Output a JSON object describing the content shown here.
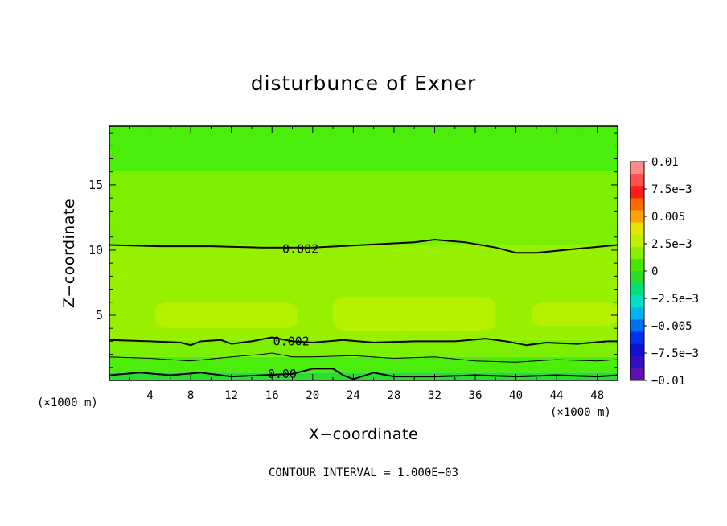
{
  "chart_data": {
    "type": "heatmap",
    "title": "disturbunce of Exner",
    "xlabel": "X−coordinate",
    "ylabel": "Z−coordinate",
    "x_unit": "(×1000 m)",
    "x_unit_right": "(×1000 m)",
    "xlim": [
      0,
      50
    ],
    "ylim": [
      0,
      19.5
    ],
    "x_ticks": [
      4,
      8,
      12,
      16,
      20,
      24,
      28,
      32,
      36,
      40,
      44,
      48
    ],
    "y_ticks": [
      5,
      10,
      15
    ],
    "footer": "CONTOUR INTERVAL = 1.000E−03",
    "colorbar": {
      "range": [
        -0.01,
        0.01
      ],
      "tick_labels": [
        "0.01",
        "7.5e−3",
        "0.005",
        "2.5e−3",
        "0",
        "−2.5e−3",
        "−0.005",
        "−7.5e−3",
        "−0.01"
      ],
      "tick_values": [
        0.01,
        0.0075,
        0.005,
        0.0025,
        0,
        -0.0025,
        -0.005,
        -0.0075,
        -0.01
      ],
      "colors": [
        "#ff8a8a",
        "#ff5050",
        "#ff1c1c",
        "#ff6a00",
        "#ffa400",
        "#e6e600",
        "#c0f000",
        "#86f000",
        "#4ae600",
        "#2edc2e",
        "#00e07a",
        "#00e0c8",
        "#00b4f0",
        "#0070f0",
        "#0030f0",
        "#1010d0",
        "#3010c0",
        "#6010b0"
      ]
    },
    "contour_labels": [
      {
        "text": "0.002",
        "x": 18.8,
        "z": 10.1
      },
      {
        "text": "0.002",
        "x": 17.9,
        "z": 3.0
      },
      {
        "text": "0.00",
        "x": 17.0,
        "z": 0.5
      }
    ],
    "bands": [
      {
        "color": "#4bee0a",
        "z_from": 16.0,
        "z_to": 19.5
      },
      {
        "color": "#7af000",
        "z_from": 10.4,
        "z_to": 16.0
      },
      {
        "color": "#96f000",
        "z_from": 3.1,
        "z_to": 10.4
      },
      {
        "color": "#7af000",
        "z_from": 1.8,
        "z_to": 3.1
      },
      {
        "color": "#4bee0a",
        "z_from": 0.6,
        "z_to": 1.8
      },
      {
        "color": "#2cde2c",
        "z_from": 0,
        "z_to": 0.6
      }
    ],
    "patches": [
      {
        "color": "#b4f000",
        "x": [
          4.5,
          18.5
        ],
        "z": [
          4.0,
          6.0
        ]
      },
      {
        "color": "#b4f000",
        "x": [
          22,
          38
        ],
        "z": [
          3.8,
          6.4
        ]
      },
      {
        "color": "#b4f000",
        "x": [
          41.5,
          50
        ],
        "z": [
          4.2,
          6.0
        ]
      }
    ],
    "contours": [
      {
        "level": "0.002",
        "width": 2,
        "points": [
          [
            0,
            10.4
          ],
          [
            5,
            10.3
          ],
          [
            10,
            10.3
          ],
          [
            15,
            10.2
          ],
          [
            20,
            10.2
          ],
          [
            25,
            10.4
          ],
          [
            30,
            10.6
          ],
          [
            32,
            10.8
          ],
          [
            35,
            10.6
          ],
          [
            38,
            10.2
          ],
          [
            40,
            9.8
          ],
          [
            42,
            9.8
          ],
          [
            46,
            10.1
          ],
          [
            50,
            10.4
          ]
        ]
      },
      {
        "level": "0.002",
        "width": 2,
        "points": [
          [
            0,
            3.1
          ],
          [
            4,
            3.0
          ],
          [
            7,
            2.9
          ],
          [
            8,
            2.7
          ],
          [
            9,
            3.0
          ],
          [
            11,
            3.1
          ],
          [
            12,
            2.8
          ],
          [
            14,
            3.0
          ],
          [
            16,
            3.3
          ],
          [
            18,
            3.0
          ],
          [
            20,
            2.9
          ],
          [
            23,
            3.1
          ],
          [
            26,
            2.9
          ],
          [
            30,
            3.0
          ],
          [
            34,
            3.0
          ],
          [
            37,
            3.2
          ],
          [
            39,
            3.0
          ],
          [
            41,
            2.7
          ],
          [
            43,
            2.9
          ],
          [
            46,
            2.8
          ],
          [
            49,
            3.0
          ],
          [
            50,
            3.0
          ]
        ]
      },
      {
        "level": "",
        "width": 1,
        "points": [
          [
            0,
            1.8
          ],
          [
            4,
            1.7
          ],
          [
            8,
            1.5
          ],
          [
            12,
            1.8
          ],
          [
            15,
            2.0
          ],
          [
            16,
            2.1
          ],
          [
            18,
            1.8
          ],
          [
            20,
            1.8
          ],
          [
            24,
            1.9
          ],
          [
            28,
            1.7
          ],
          [
            32,
            1.8
          ],
          [
            36,
            1.5
          ],
          [
            40,
            1.4
          ],
          [
            44,
            1.6
          ],
          [
            48,
            1.5
          ],
          [
            50,
            1.6
          ]
        ]
      },
      {
        "level": "0.00",
        "width": 2,
        "points": [
          [
            0,
            0.4
          ],
          [
            3,
            0.6
          ],
          [
            6,
            0.4
          ],
          [
            9,
            0.6
          ],
          [
            12,
            0.3
          ],
          [
            15,
            0.4
          ],
          [
            18,
            0.5
          ],
          [
            20,
            0.9
          ],
          [
            22,
            0.9
          ],
          [
            23,
            0.4
          ],
          [
            24,
            0.1
          ],
          [
            26,
            0.6
          ],
          [
            28,
            0.3
          ],
          [
            32,
            0.3
          ],
          [
            36,
            0.4
          ],
          [
            40,
            0.3
          ],
          [
            44,
            0.4
          ],
          [
            48,
            0.3
          ],
          [
            50,
            0.4
          ]
        ]
      }
    ]
  }
}
